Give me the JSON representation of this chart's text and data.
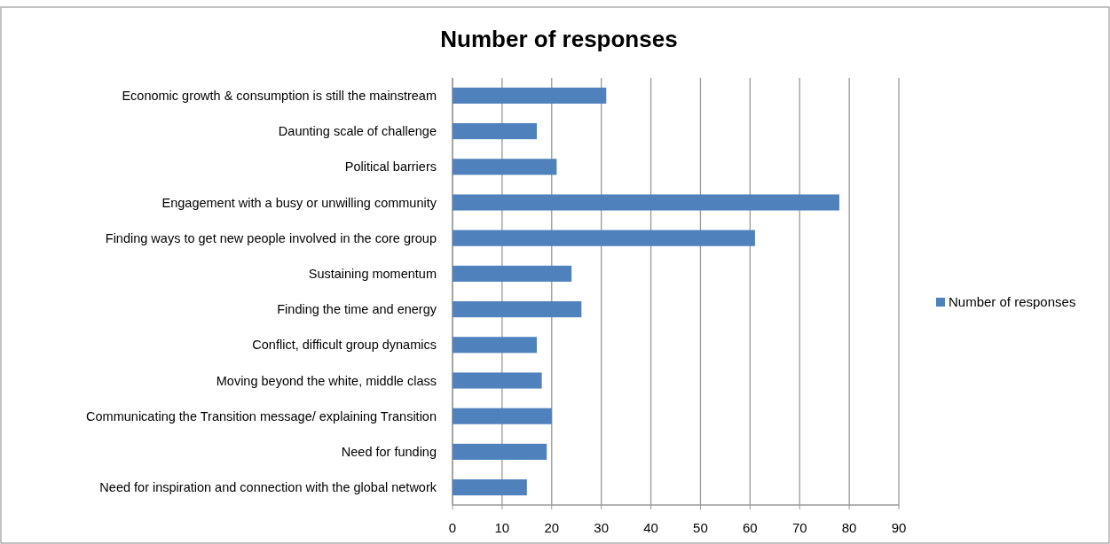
{
  "chart_data": {
    "type": "bar",
    "orientation": "horizontal",
    "title": "Number of responses",
    "categories": [
      "Economic growth & consumption is still the mainstream",
      "Daunting scale of challenge",
      "Political barriers",
      "Engagement with a busy or unwilling community",
      "Finding ways to get new people involved in the core group",
      "Sustaining momentum",
      "Finding the time and energy",
      "Conflict, difficult group dynamics",
      "Moving beyond the white, middle class",
      "Communicating the Transition message/ explaining Transition",
      "Need for funding",
      "Need for inspiration and connection with the global network"
    ],
    "series": [
      {
        "name": "Number of responses",
        "color": "#4f81bd",
        "values": [
          31,
          17,
          21,
          78,
          61,
          24,
          26,
          17,
          18,
          20,
          19,
          15
        ]
      }
    ],
    "xlim": [
      0,
      90
    ],
    "xticks": [
      0,
      10,
      20,
      30,
      40,
      50,
      60,
      70,
      80,
      90
    ],
    "grid": "x",
    "legend": "right"
  }
}
